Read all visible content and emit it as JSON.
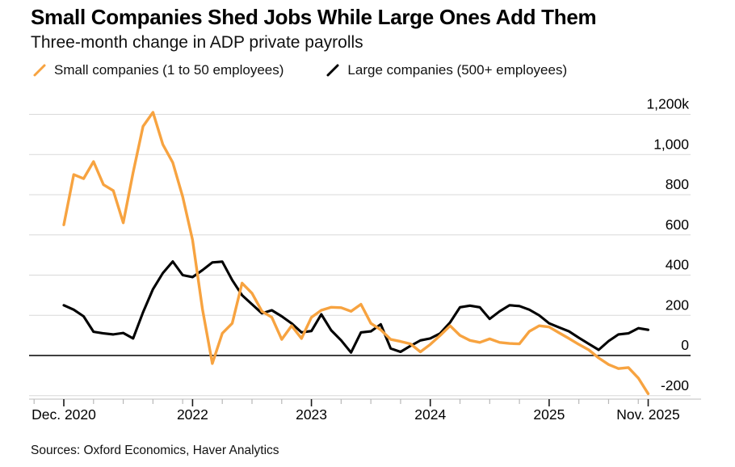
{
  "header": {
    "title": "Small Companies Shed Jobs While Large Ones Add Them",
    "subtitle": "Three-month change in ADP private payrolls"
  },
  "legend": {
    "items": [
      {
        "label": "Small companies (1 to 50 employees)",
        "color": "#F7A340"
      },
      {
        "label": "Large companies (500+ employees)",
        "color": "#000000"
      }
    ]
  },
  "footer": {
    "source": "Sources: Oxford Economics, Haver Analytics"
  },
  "chart_data": {
    "type": "line",
    "title": "Small Companies Shed Jobs While Large Ones Add Them",
    "subtitle": "Three-month change in ADP private payrolls",
    "unit_note": "thousands of jobs (k)",
    "legend_position": "top-left",
    "grid": true,
    "x": [
      "Dec 2020",
      "Jan 2021",
      "Feb 2021",
      "Mar 2021",
      "Apr 2021",
      "May 2021",
      "Jun 2021",
      "Jul 2021",
      "Aug 2021",
      "Sep 2021",
      "Oct 2021",
      "Nov 2021",
      "Dec 2021",
      "Jan 2022",
      "Feb 2022",
      "Mar 2022",
      "Apr 2022",
      "May 2022",
      "Jun 2022",
      "Jul 2022",
      "Aug 2022",
      "Sep 2022",
      "Oct 2022",
      "Nov 2022",
      "Dec 2022",
      "Jan 2023",
      "Feb 2023",
      "Mar 2023",
      "Apr 2023",
      "May 2023",
      "Jun 2023",
      "Jul 2023",
      "Aug 2023",
      "Sep 2023",
      "Oct 2023",
      "Nov 2023",
      "Dec 2023",
      "Jan 2024",
      "Feb 2024",
      "Mar 2024",
      "Apr 2024",
      "May 2024",
      "Jun 2024",
      "Jul 2024",
      "Aug 2024",
      "Sep 2024",
      "Oct 2024",
      "Nov 2024",
      "Dec 2024",
      "Jan 2025",
      "Feb 2025",
      "Mar 2025",
      "Apr 2025",
      "May 2025",
      "Jun 2025",
      "Jul 2025",
      "Aug 2025",
      "Sep 2025",
      "Oct 2025",
      "Nov 2025"
    ],
    "series": [
      {
        "name": "Small companies (1 to 50 employees)",
        "color": "#F7A340",
        "values": [
          650,
          900,
          880,
          965,
          850,
          820,
          660,
          910,
          1140,
          1210,
          1050,
          960,
          790,
          575,
          230,
          -40,
          110,
          160,
          360,
          310,
          220,
          190,
          80,
          148,
          85,
          190,
          225,
          240,
          238,
          220,
          255,
          160,
          128,
          80,
          70,
          58,
          18,
          55,
          100,
          148,
          100,
          75,
          65,
          83,
          65,
          60,
          58,
          120,
          148,
          142,
          113,
          85,
          55,
          28,
          -12,
          -45,
          -65,
          -60,
          -112,
          -190
        ]
      },
      {
        "name": "Large companies (500+ employees)",
        "color": "#000000",
        "values": [
          250,
          228,
          195,
          118,
          110,
          105,
          112,
          85,
          215,
          330,
          410,
          468,
          400,
          390,
          425,
          463,
          467,
          375,
          300,
          255,
          210,
          225,
          195,
          160,
          115,
          122,
          205,
          125,
          75,
          15,
          115,
          120,
          155,
          35,
          18,
          48,
          75,
          85,
          110,
          165,
          240,
          248,
          240,
          182,
          220,
          250,
          246,
          228,
          200,
          160,
          140,
          120,
          88,
          58,
          28,
          72,
          105,
          110,
          136,
          128
        ]
      }
    ],
    "y_axis": {
      "ticks": [
        1200,
        1000,
        800,
        600,
        400,
        200,
        0,
        -200
      ],
      "tick_labels": [
        "1,200k",
        "1,000",
        "800",
        "600",
        "400",
        "200",
        "0",
        "-200"
      ],
      "zero_line": true,
      "range": [
        -290,
        1290
      ]
    },
    "x_axis": {
      "major_ticks": [
        {
          "index": 0,
          "label": "Dec. 2020"
        },
        {
          "index": 13,
          "label": "2022"
        },
        {
          "index": 25,
          "label": "2023"
        },
        {
          "index": 37,
          "label": "2024"
        },
        {
          "index": 49,
          "label": "2025"
        },
        {
          "index": 59,
          "label": "Nov. 2025"
        }
      ],
      "minor_tick_indices": [
        -3,
        3,
        6,
        9,
        12,
        16,
        19,
        22,
        28,
        31,
        34,
        40,
        43,
        46,
        52,
        55,
        58
      ]
    }
  }
}
